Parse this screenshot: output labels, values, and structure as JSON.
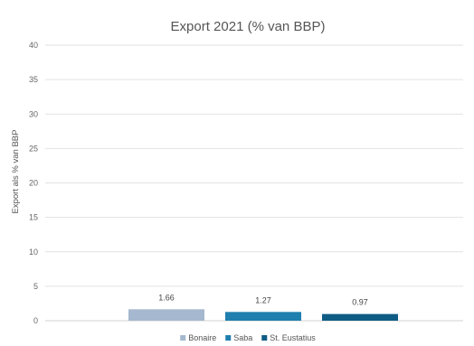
{
  "chart_data": {
    "type": "bar",
    "title": "Export 2021 (% van BBP)",
    "ylabel": "Export als % van BBP",
    "xlabel": "",
    "ylim": [
      0,
      40
    ],
    "yticks": [
      0,
      5,
      10,
      15,
      20,
      25,
      30,
      35,
      40
    ],
    "grid": true,
    "legend_position": "bottom",
    "series": [
      {
        "name": "Bonaire",
        "value": 1.66,
        "label": "1.66",
        "color": "#a5b8cf"
      },
      {
        "name": "Saba",
        "value": 1.27,
        "label": "1.27",
        "color": "#1f7fae"
      },
      {
        "name": "St. Eustatius",
        "value": 0.97,
        "label": "0.97",
        "color": "#0f5c84"
      }
    ]
  }
}
